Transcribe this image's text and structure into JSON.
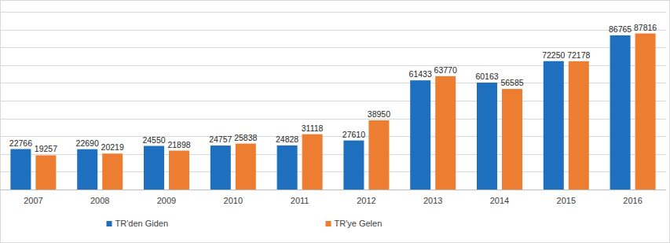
{
  "chart_data": {
    "type": "bar",
    "categories": [
      "2007",
      "2008",
      "2009",
      "2010",
      "2011",
      "2012",
      "2013",
      "2014",
      "2015",
      "2016"
    ],
    "series": [
      {
        "name": "TR'den Giden",
        "color": "#1f6fbf",
        "values": [
          22766,
          22690,
          24550,
          24757,
          24828,
          27610,
          61433,
          60163,
          72250,
          86765
        ]
      },
      {
        "name": "TR'ye Gelen",
        "color": "#ed7d31",
        "values": [
          19257,
          20219,
          21898,
          25838,
          31118,
          38950,
          63770,
          56585,
          72178,
          87816
        ]
      }
    ],
    "ylim": [
      0,
      100000
    ],
    "yticks": [
      0,
      10000,
      20000,
      30000,
      40000,
      50000,
      60000,
      70000,
      80000,
      90000,
      100000
    ],
    "grid": true,
    "legend": "bottom",
    "data_labels": true,
    "tick_labels": "x"
  }
}
